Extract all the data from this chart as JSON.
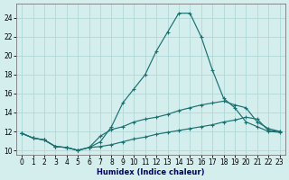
{
  "xlabel": "Humidex (Indice chaleur)",
  "x_ticks": [
    0,
    1,
    2,
    3,
    4,
    5,
    6,
    7,
    8,
    9,
    10,
    11,
    12,
    13,
    14,
    15,
    16,
    17,
    18,
    19,
    20,
    21,
    22,
    23
  ],
  "xlim": [
    -0.5,
    23.5
  ],
  "ylim": [
    9.5,
    25.5
  ],
  "y_ticks": [
    10,
    12,
    14,
    16,
    18,
    20,
    22,
    24
  ],
  "background_color": "#d4eeee",
  "grid_color": "#b0d8d8",
  "line_color": "#1a7070",
  "curve1_x": [
    0,
    1,
    2,
    3,
    4,
    5,
    6,
    7,
    8,
    9,
    10,
    11,
    12,
    13,
    14,
    15,
    16,
    17,
    18,
    19,
    20,
    21,
    22,
    23
  ],
  "curve1_y": [
    11.8,
    11.3,
    11.1,
    10.4,
    10.3,
    10.0,
    10.3,
    10.9,
    12.5,
    15.0,
    16.5,
    18.0,
    20.5,
    22.5,
    24.5,
    24.5,
    22.0,
    18.5,
    15.5,
    14.5,
    13.0,
    12.5,
    12.0,
    11.9
  ],
  "curve2_x": [
    0,
    1,
    2,
    3,
    4,
    5,
    6,
    7,
    8,
    9,
    10,
    11,
    12,
    13,
    14,
    15,
    16,
    17,
    18,
    19,
    20,
    21,
    22,
    23
  ],
  "curve2_y": [
    11.8,
    11.3,
    11.1,
    10.4,
    10.3,
    10.0,
    10.3,
    11.5,
    12.2,
    12.5,
    13.0,
    13.3,
    13.5,
    13.8,
    14.2,
    14.5,
    14.8,
    15.0,
    15.2,
    14.8,
    14.5,
    13.0,
    12.3,
    12.0
  ],
  "curve3_x": [
    0,
    1,
    2,
    3,
    4,
    5,
    6,
    7,
    8,
    9,
    10,
    11,
    12,
    13,
    14,
    15,
    16,
    17,
    18,
    19,
    20,
    21,
    22,
    23
  ],
  "curve3_y": [
    11.8,
    11.3,
    11.1,
    10.4,
    10.3,
    10.0,
    10.3,
    10.4,
    10.6,
    10.9,
    11.2,
    11.4,
    11.7,
    11.9,
    12.1,
    12.3,
    12.5,
    12.7,
    13.0,
    13.2,
    13.5,
    13.3,
    12.1,
    12.0
  ]
}
